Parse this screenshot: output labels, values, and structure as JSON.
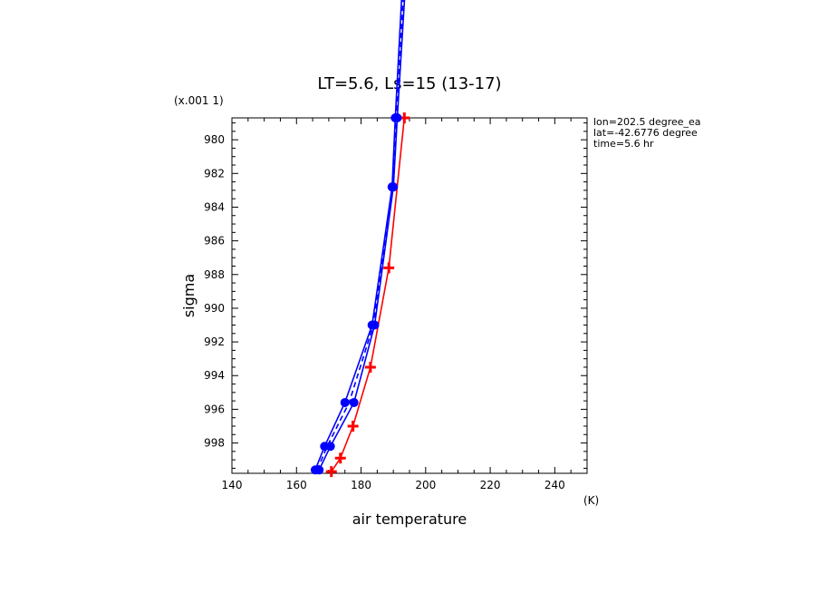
{
  "chart_data": {
    "type": "line",
    "title": "LT=5.6, Ls=15 (13-17)",
    "xlabel": "air temperature",
    "xunit": "(K)",
    "ylabel": "sigma",
    "yscale_label": "(x.001 1)",
    "xlim": [
      140,
      250
    ],
    "ylim": [
      999.8,
      978.7
    ],
    "y_inverted": true,
    "x_ticks": [
      140,
      160,
      180,
      200,
      220,
      240
    ],
    "y_ticks": [
      980,
      982,
      984,
      986,
      988,
      990,
      992,
      994,
      996,
      998
    ],
    "x_tick_labels": [
      "140",
      "160",
      "180",
      "200",
      "220",
      "240"
    ],
    "y_tick_labels": [
      "980",
      "982",
      "984",
      "986",
      "988",
      "990",
      "992",
      "994",
      "996",
      "998"
    ],
    "annotations": [
      "lon=202.5 degree_ea",
      "lat=-42.6776 degree",
      "time=5.6 hr"
    ],
    "grid": false,
    "series": [
      {
        "color": "#ff0000",
        "style": "solid",
        "marker": "plus",
        "x": [
          170.8,
          173.6,
          177.5,
          182.9,
          188.6,
          193.4
        ],
        "y": [
          999.7,
          998.9,
          997.0,
          993.5,
          987.6,
          978.7
        ]
      },
      {
        "color": "#0000ff",
        "style": "solid",
        "marker": "circle",
        "x": [
          165.8,
          168.7,
          175.0,
          183.4,
          189.6,
          190.6,
          193.0
        ],
        "y": [
          999.6,
          998.2,
          995.6,
          991.0,
          982.8,
          978.7,
          970.0
        ]
      },
      {
        "color": "#0000ff",
        "style": "solid",
        "marker": "circle",
        "x": [
          167.0,
          170.5,
          177.8,
          184.2,
          190.0,
          191.2,
          194.0
        ],
        "y": [
          999.6,
          998.2,
          995.6,
          991.0,
          982.8,
          978.7,
          970.0
        ]
      },
      {
        "color": "#0000ff",
        "style": "dashed",
        "marker": "none",
        "x": [
          166.4,
          169.5,
          176.3,
          183.8,
          189.8,
          191.0,
          193.5
        ],
        "y": [
          999.6,
          998.2,
          995.6,
          991.0,
          982.8,
          978.7,
          970.0
        ]
      }
    ]
  }
}
